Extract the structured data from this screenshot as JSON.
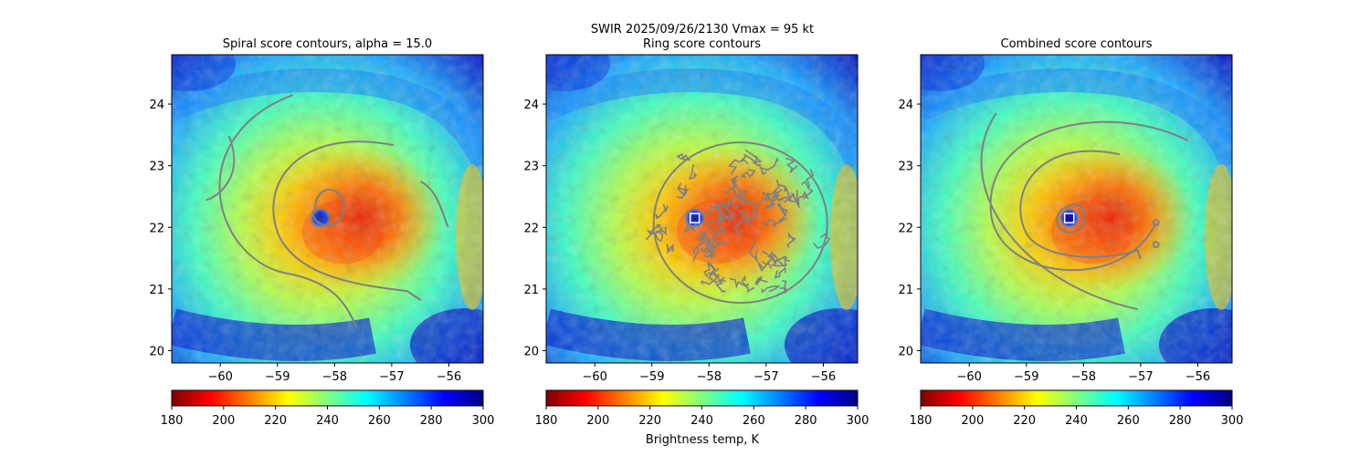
{
  "suptitle": "SWIR  2025/09/26/2130    Vmax = 95 kt",
  "colorbar": {
    "label": "Brightness temp, K",
    "vmin": 180,
    "vmax": 300,
    "ticks": [
      "180",
      "200",
      "220",
      "240",
      "260",
      "280",
      "300"
    ],
    "colormap": "jet_r",
    "stops": [
      "#800000",
      "#ff0000",
      "#ff8000",
      "#ffff00",
      "#80ff80",
      "#00ffff",
      "#0080ff",
      "#0000ff",
      "#000080"
    ]
  },
  "panels": [
    {
      "title": "Spiral score contours, alpha = 15.0",
      "xticks": [
        "−60",
        "−59",
        "−58",
        "−57",
        "−56"
      ],
      "yticks": [
        "20",
        "21",
        "22",
        "23",
        "24"
      ],
      "center_marker": false
    },
    {
      "title": "Ring score contours",
      "xticks": [
        "−60",
        "−59",
        "−58",
        "−57",
        "−56"
      ],
      "yticks": [
        "20",
        "21",
        "22",
        "23",
        "24"
      ],
      "center_marker": true
    },
    {
      "title": "Combined score contours",
      "xticks": [
        "−60",
        "−59",
        "−58",
        "−57",
        "−56"
      ],
      "yticks": [
        "20",
        "21",
        "22",
        "23",
        "24"
      ],
      "center_marker": true
    }
  ],
  "chart_data": {
    "type": "heatmap",
    "title": "SWIR  2025/09/26/2130    Vmax = 95 kt",
    "xlim": [
      -60.85,
      -55.4
    ],
    "ylim": [
      19.8,
      24.8
    ],
    "x_ticks": [
      -60,
      -59,
      -58,
      -57,
      -56
    ],
    "y_ticks": [
      20,
      21,
      22,
      23,
      24
    ],
    "storm_center": {
      "lon": -58.25,
      "lat": 22.15
    },
    "contour_color": "#808080",
    "colorbar_range": [
      180,
      300
    ]
  }
}
